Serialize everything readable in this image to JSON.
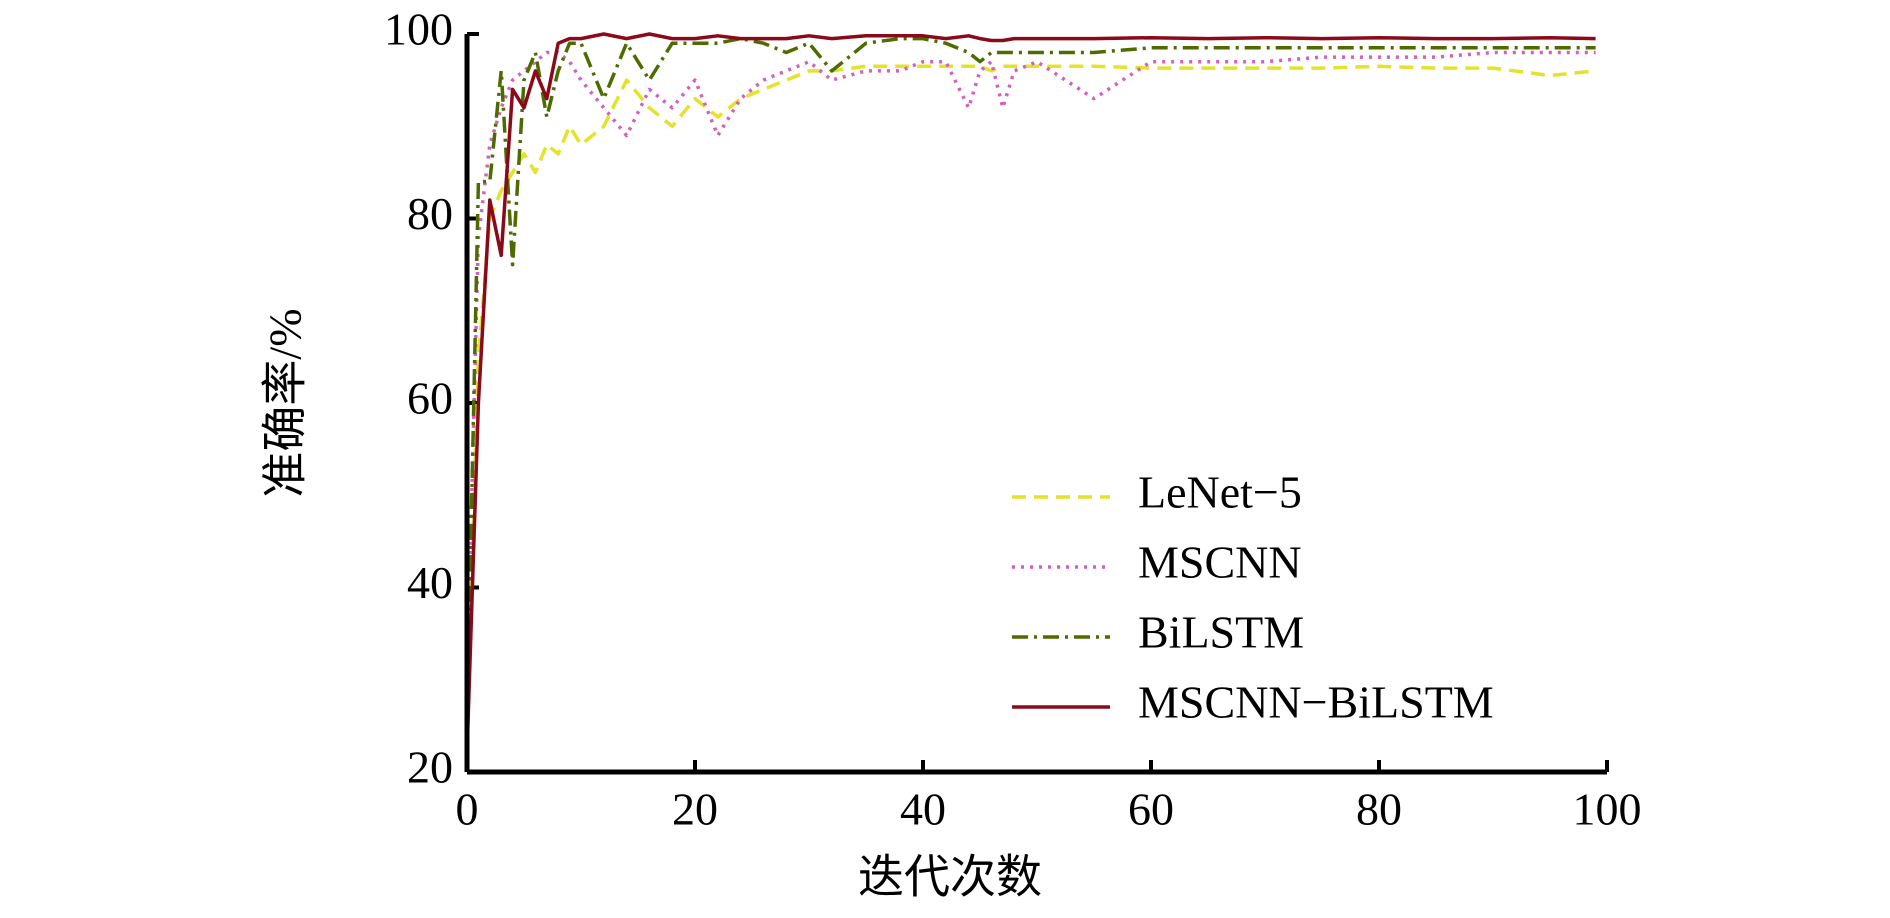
{
  "chart_data": {
    "type": "line",
    "x_label": "迭代次数",
    "y_label": "准确率/%",
    "x": [
      0,
      1,
      2,
      3,
      4,
      5,
      6,
      7,
      8,
      9,
      10,
      12,
      14,
      16,
      18,
      20,
      22,
      24,
      26,
      28,
      30,
      32,
      35,
      38,
      40,
      42,
      44,
      45,
      46,
      47,
      48,
      50,
      55,
      60,
      65,
      70,
      75,
      80,
      85,
      90,
      95,
      99
    ],
    "series": [
      {
        "name": "LeNet−5",
        "color": "#e3e32b",
        "style": "dashed",
        "values": [
          25,
          65,
          80,
          83,
          85,
          87,
          85,
          88,
          87,
          90,
          88,
          90,
          95,
          92,
          90,
          93,
          91,
          93,
          94,
          95,
          96,
          96,
          96.5,
          96.5,
          96.5,
          96.5,
          96.5,
          96.5,
          96,
          96.5,
          96.5,
          96.5,
          96.5,
          96.3,
          96.3,
          96.3,
          96.3,
          96.5,
          96.3,
          96.3,
          95.5,
          96
        ]
      },
      {
        "name": "MSCNN",
        "color": "#d45fbf",
        "style": "dotted",
        "values": [
          30,
          78,
          88,
          92,
          95,
          96,
          97,
          98,
          98,
          97,
          95,
          92,
          89,
          94,
          92,
          95,
          89,
          93,
          95,
          96,
          97,
          95,
          96,
          96,
          97,
          97,
          92,
          96,
          97,
          92,
          96,
          97,
          93,
          97,
          97,
          97,
          97.5,
          97.5,
          97.5,
          98,
          98,
          98
        ]
      },
      {
        "name": "BiLSTM",
        "color": "#4e6b00",
        "style": "dashdot",
        "values": [
          25,
          84,
          84,
          96,
          75,
          95,
          98,
          91,
          96,
          99,
          99,
          93,
          99,
          95,
          99,
          99,
          99,
          99.5,
          99,
          98,
          99,
          96,
          99,
          99.5,
          99.5,
          99,
          98,
          97,
          98,
          98,
          98,
          98,
          98,
          98.5,
          98.5,
          98.5,
          98.5,
          98.5,
          98.5,
          98.5,
          98.5,
          98.5
        ]
      },
      {
        "name": "MSCNN−BiLSTM",
        "color": "#8b0a1a",
        "style": "solid",
        "values": [
          22,
          60,
          82,
          76,
          94,
          92,
          96,
          93,
          99,
          99.5,
          99.5,
          100,
          99.5,
          100,
          99.5,
          99.5,
          99.8,
          99.5,
          99.5,
          99.5,
          99.8,
          99.5,
          99.8,
          99.8,
          99.8,
          99.5,
          99.8,
          99.5,
          99.3,
          99.3,
          99.5,
          99.5,
          99.5,
          99.6,
          99.5,
          99.6,
          99.5,
          99.6,
          99.5,
          99.5,
          99.6,
          99.5
        ]
      }
    ],
    "xlim": [
      0,
      100
    ],
    "xticks": [
      0,
      20,
      40,
      60,
      80,
      100
    ],
    "ylim": [
      20,
      100
    ],
    "yticks": [
      20,
      40,
      60,
      80,
      100
    ],
    "legend": "lower right"
  }
}
